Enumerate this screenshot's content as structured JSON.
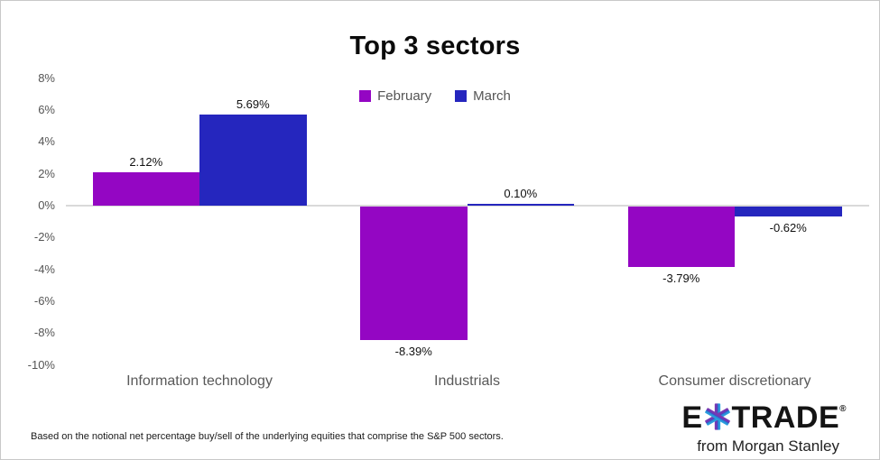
{
  "title": "Top 3 sectors",
  "chart_data": {
    "type": "bar",
    "title": "Top 3 sectors",
    "categories": [
      "Information technology",
      "Industrials",
      "Consumer discretionary"
    ],
    "series": [
      {
        "name": "February",
        "color": "#9406C3",
        "values": [
          2.12,
          -8.39,
          -3.79
        ],
        "labels": [
          "2.12%",
          "-8.39%",
          "-3.79%"
        ]
      },
      {
        "name": "March",
        "color": "#2526BE",
        "values": [
          5.69,
          0.1,
          -0.62
        ],
        "labels": [
          "5.69%",
          "0.10%",
          "-0.62%"
        ]
      }
    ],
    "ylim": [
      -10,
      8
    ],
    "ytick_step": 2,
    "ytick_labels": [
      "8%",
      "6%",
      "4%",
      "2%",
      "0%",
      "-2%",
      "-4%",
      "-6%",
      "-8%",
      "-10%"
    ],
    "legend_position": "top-center",
    "grid": false,
    "axis_line_color": "#d9d9d9"
  },
  "footnote": "Based on the notional net percentage buy/sell of the underlying equities that comprise the S&P 500 sectors.",
  "brand": {
    "name_e": "E",
    "name_trade": "TRADE",
    "registered": "®",
    "tagline": "from Morgan Stanley",
    "star_colors": {
      "left": "#7A3CB0",
      "mid": "#3350C2",
      "right": "#2BAAE2"
    }
  }
}
